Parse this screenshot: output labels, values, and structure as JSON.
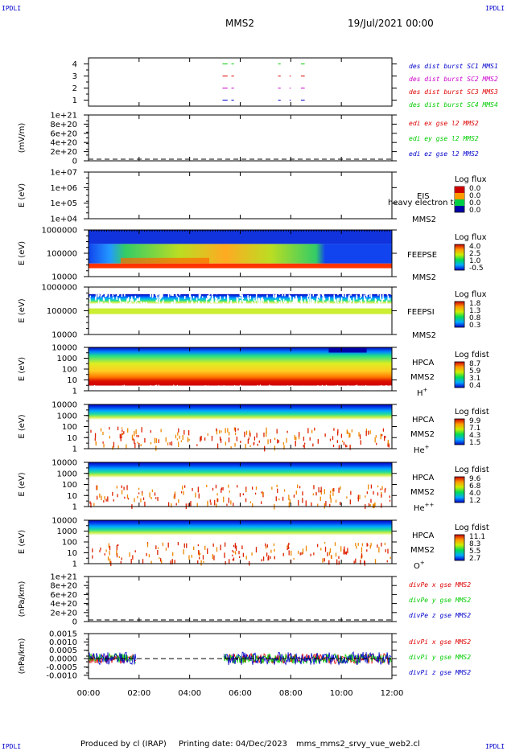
{
  "header": {
    "corner_label": "IPDLI",
    "spacecraft": "MMS2",
    "date_time": "19/Jul/2021 00:00"
  },
  "footer": {
    "produced_by": "Produced by cl (IRAP)",
    "printing_date": "Printing date: 04/Dec/2023",
    "file_name": "mms_mms2_srvy_vue_web2.cl"
  },
  "colors": {
    "blue": "#0000cc",
    "red": "#dd0000",
    "green": "#00cc00",
    "magenta": "#cc00cc"
  },
  "chart_data": {
    "type": "line",
    "x_axis": {
      "ticks": [
        "00:00",
        "02:00",
        "04:00",
        "06:00",
        "08:00",
        "10:00",
        "12:00"
      ],
      "range_hours": [
        0,
        12
      ]
    },
    "panels": [
      {
        "id": "burst",
        "type": "line",
        "ylabel": "",
        "ticks": [
          "4",
          "3",
          "2",
          "1"
        ],
        "ylim": [
          0.5,
          4.5
        ],
        "legend": [
          {
            "text": "des dist burst SC1 MMS1",
            "color": "#0000cc"
          },
          {
            "text": "des dist burst SC2 MMS2",
            "color": "#cc00cc"
          },
          {
            "text": "des dist burst SC3 MMS3",
            "color": "#dd0000"
          },
          {
            "text": "des dist burst SC4 MMS4",
            "color": "#00cc00"
          }
        ],
        "series": [
          {
            "level": 4,
            "color": "#00cc00",
            "intervals": [
              [
                5.3,
                5.5
              ],
              [
                5.65,
                5.75
              ],
              [
                7.5,
                7.6
              ],
              [
                8.4,
                8.55
              ]
            ]
          },
          {
            "level": 3,
            "color": "#dd0000",
            "intervals": [
              [
                5.3,
                5.5
              ],
              [
                5.65,
                5.75
              ],
              [
                7.5,
                7.6
              ],
              [
                7.95,
                8.0
              ],
              [
                8.4,
                8.55
              ]
            ]
          },
          {
            "level": 2,
            "color": "#cc00cc",
            "intervals": [
              [
                5.3,
                5.5
              ],
              [
                5.65,
                5.75
              ],
              [
                7.5,
                7.6
              ],
              [
                7.95,
                8.0
              ],
              [
                8.4,
                8.55
              ]
            ]
          },
          {
            "level": 1,
            "color": "#0000cc",
            "intervals": [
              [
                5.3,
                5.5
              ],
              [
                5.65,
                5.75
              ],
              [
                7.5,
                7.6
              ],
              [
                7.95,
                8.0
              ],
              [
                8.4,
                8.55
              ]
            ]
          }
        ]
      },
      {
        "id": "edi-e",
        "type": "line",
        "ylabel": "(mV/m)",
        "ticks": [
          "1e+21",
          "8e+20",
          "6e+20",
          "4e+20",
          "2e+20",
          "0"
        ],
        "ylim": [
          0,
          1e+21
        ],
        "legend": [
          {
            "text": "edi ex gse l2 MMS2",
            "color": "#dd0000"
          },
          {
            "text": "edi ey gse l2 MMS2",
            "color": "#00cc00"
          },
          {
            "text": "edi ez gse l2 MMS2",
            "color": "#0000cc"
          }
        ],
        "zero_line": true
      },
      {
        "id": "eis",
        "type": "heatmap",
        "ylabel": "E (eV)",
        "ticks": [
          "1e+07",
          "1e+06",
          "1e+05",
          "1e+04"
        ],
        "labels": [
          "EIS",
          "heavy electron to",
          "MMS2"
        ],
        "colorbar": {
          "title": "Log flux",
          "ticks": [
            "0.0",
            "0.0",
            "0.0",
            "0.0"
          ]
        },
        "empty": true
      },
      {
        "id": "feepse",
        "type": "heatmap",
        "ylabel": "E (eV)",
        "ticks": [
          "1000000",
          "100000",
          "10000"
        ],
        "labels": [
          "FEEPSE",
          "MMS2"
        ],
        "colorbar": {
          "title": "Log flux",
          "ticks": [
            "4.0",
            "2.5",
            "1.0",
            "-0.5"
          ]
        }
      },
      {
        "id": "feepsi",
        "type": "heatmap",
        "ylabel": "E (eV)",
        "ticks": [
          "1000000",
          "100000",
          "10000"
        ],
        "labels": [
          "FEEPSI",
          "MMS2"
        ],
        "colorbar": {
          "title": "Log flux",
          "ticks": [
            "1.8",
            "1.3",
            "0.8",
            "0.3"
          ]
        }
      },
      {
        "id": "hpca-h",
        "type": "heatmap",
        "ylabel": "E (eV)",
        "ticks": [
          "10000",
          "1000",
          "100",
          "10",
          "1"
        ],
        "labels": [
          "HPCA",
          "MMS2",
          "H",
          "+"
        ],
        "colorbar": {
          "title": "Log fdist",
          "ticks": [
            "8.7",
            "5.9",
            "3.1",
            "0.4"
          ]
        }
      },
      {
        "id": "hpca-he",
        "type": "heatmap",
        "ylabel": "E (eV)",
        "ticks": [
          "10000",
          "1000",
          "100",
          "10",
          "1"
        ],
        "labels": [
          "HPCA",
          "MMS2",
          "He",
          "+"
        ],
        "colorbar": {
          "title": "Log fdist",
          "ticks": [
            "9.9",
            "7.1",
            "4.3",
            "1.5"
          ]
        }
      },
      {
        "id": "hpca-he2",
        "type": "heatmap",
        "ylabel": "E (eV)",
        "ticks": [
          "10000",
          "1000",
          "100",
          "10",
          "1"
        ],
        "labels": [
          "HPCA",
          "MMS2",
          "He",
          "++"
        ],
        "colorbar": {
          "title": "Log fdist",
          "ticks": [
            "9.6",
            "6.8",
            "4.0",
            "1.2"
          ]
        }
      },
      {
        "id": "hpca-o",
        "type": "heatmap",
        "ylabel": "E (eV)",
        "ticks": [
          "10000",
          "1000",
          "100",
          "10",
          "1"
        ],
        "labels": [
          "HPCA",
          "MMS2",
          "O",
          "+"
        ],
        "colorbar": {
          "title": "Log fdist",
          "ticks": [
            "11.1",
            "8.3",
            "5.5",
            "2.7"
          ]
        }
      },
      {
        "id": "divpe",
        "type": "line",
        "ylabel": "(nPa/km)",
        "ticks": [
          "1e+21",
          "8e+20",
          "6e+20",
          "4e+20",
          "2e+20",
          "0"
        ],
        "ylim": [
          0,
          1e+21
        ],
        "legend": [
          {
            "text": "divPe x gse MMS2",
            "color": "#dd0000"
          },
          {
            "text": "divPe y gse MMS2",
            "color": "#00cc00"
          },
          {
            "text": "divPe z gse MMS2",
            "color": "#0000cc"
          }
        ],
        "zero_line": true
      },
      {
        "id": "divpi",
        "type": "line",
        "ylabel": "(nPa/km)",
        "ticks": [
          "0.0015",
          "0.0010",
          "0.0005",
          "0.0000",
          "-0.0005",
          "-0.0010"
        ],
        "ylim": [
          -0.0012,
          0.0015
        ],
        "legend": [
          {
            "text": "divPi x gse MMS2",
            "color": "#dd0000"
          },
          {
            "text": "divPi y gse MMS2",
            "color": "#00cc00"
          },
          {
            "text": "divPi z gse MMS2",
            "color": "#0000cc"
          }
        ],
        "zero_line": true,
        "data_segments_hours": [
          [
            0,
            1.9
          ],
          [
            5.35,
            12
          ]
        ],
        "noise_amplitude": 0.0003
      }
    ]
  }
}
